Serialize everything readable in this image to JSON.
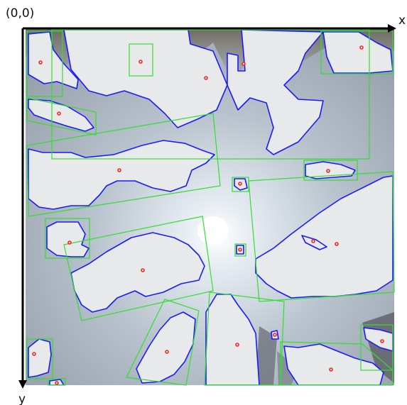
{
  "figure": {
    "origin_label": "(0,0)",
    "x_axis_label": "x",
    "y_axis_label": "y"
  },
  "colors": {
    "sky_top": "#8d98a6",
    "sky_center": "#dfe6ee",
    "cloud": "#e9eaeb",
    "cloud_contour": "#1a1aff",
    "bounding_box": "#33dd33",
    "centroid": "#ff2020",
    "axis": "#000000"
  }
}
